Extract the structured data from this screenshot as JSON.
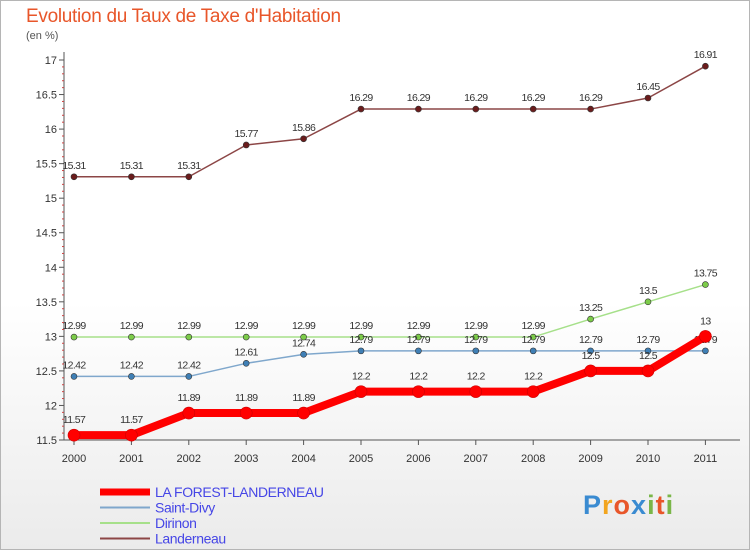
{
  "chart_data": {
    "type": "line",
    "title": "Evolution du Taux de Taxe d'Habitation",
    "ylabel": "(en %)",
    "x": [
      "2000",
      "2001",
      "2002",
      "2003",
      "2004",
      "2005",
      "2006",
      "2007",
      "2008",
      "2009",
      "2010",
      "2011"
    ],
    "ylim": [
      11.5,
      17
    ],
    "yticks": [
      "11.5",
      "12",
      "12.5",
      "13",
      "13.5",
      "14",
      "14.5",
      "15",
      "15.5",
      "16",
      "16.5",
      "17"
    ],
    "grid": false,
    "legend_position": "bottom-left",
    "series": [
      {
        "name": "LA FOREST-LANDERNEAU",
        "color": "#ff0000",
        "marker": "#ff0000",
        "values": [
          11.57,
          11.57,
          11.89,
          11.89,
          11.89,
          12.2,
          12.2,
          12.2,
          12.2,
          12.5,
          12.5,
          13
        ],
        "labels": [
          "11.57",
          "11.57",
          "11.89",
          "11.89",
          "11.89",
          "12.2",
          "12.2",
          "12.2",
          "12.2",
          "12.5",
          "12.5",
          "13"
        ]
      },
      {
        "name": "Saint-Divy",
        "color": "#7fa7cc",
        "marker": "#3f7fb5",
        "values": [
          12.42,
          12.42,
          12.42,
          12.61,
          12.74,
          12.79,
          12.79,
          12.79,
          12.79,
          12.79,
          12.79,
          12.79
        ],
        "labels": [
          "12.42",
          "12.42",
          "12.42",
          "12.61",
          "12.74",
          "12.79",
          "12.79",
          "12.79",
          "12.79",
          "12.79",
          "12.79",
          "12.79"
        ]
      },
      {
        "name": "Dirinon",
        "color": "#a6e08a",
        "marker": "#7ccc49",
        "values": [
          12.99,
          12.99,
          12.99,
          12.99,
          12.99,
          12.99,
          12.99,
          12.99,
          12.99,
          13.25,
          13.5,
          13.75
        ],
        "labels": [
          "12.99",
          "12.99",
          "12.99",
          "12.99",
          "12.99",
          "12.99",
          "12.99",
          "12.99",
          "12.99",
          "13.25",
          "13.5",
          "13.75"
        ]
      },
      {
        "name": "Landerneau",
        "color": "#8c4646",
        "marker": "#6b1c1c",
        "values": [
          15.31,
          15.31,
          15.31,
          15.77,
          15.86,
          16.29,
          16.29,
          16.29,
          16.29,
          16.29,
          16.45,
          16.91
        ],
        "labels": [
          "15.31",
          "15.31",
          "15.31",
          "15.77",
          "15.86",
          "16.29",
          "16.29",
          "16.29",
          "16.29",
          "16.29",
          "16.45",
          "16.91"
        ]
      }
    ]
  },
  "logo": {
    "letters": [
      "P",
      "r",
      "o",
      "x",
      "i",
      "t",
      "i"
    ],
    "colors": [
      "#3a8bd1",
      "#f2a51f",
      "#e8562a",
      "#3a8bd1",
      "#7ab648",
      "#e8562a",
      "#7ab648"
    ]
  }
}
